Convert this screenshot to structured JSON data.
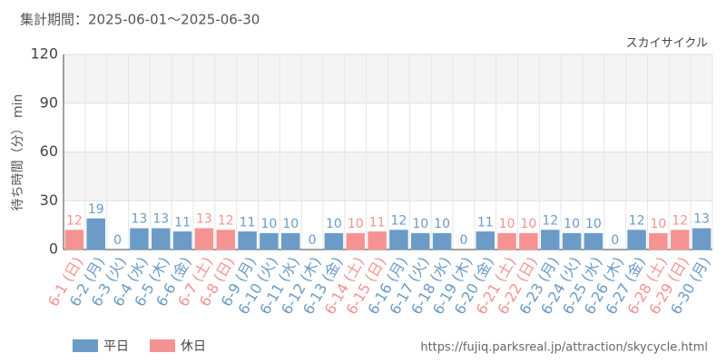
{
  "chart_data": {
    "type": "bar",
    "title": "集計期間：2025-06-01～2025-06-30",
    "subtitle": "スカイサイクル",
    "y_label": "待ち時間（分） min",
    "source": "https://fujiq.parksreal.jp/attraction/skycycle.html",
    "categories": [
      "6-1 (日)",
      "6-2 (月)",
      "6-3 (火)",
      "6-4 (水)",
      "6-5 (木)",
      "6-6 (金)",
      "6-7 (土)",
      "6-8 (日)",
      "6-9 (月)",
      "6-10 (火)",
      "6-11 (水)",
      "6-12 (木)",
      "6-13 (金)",
      "6-14 (土)",
      "6-15 (日)",
      "6-16 (月)",
      "6-17 (火)",
      "6-18 (水)",
      "6-19 (木)",
      "6-20 (金)",
      "6-21 (土)",
      "6-22 (日)",
      "6-23 (月)",
      "6-24 (火)",
      "6-25 (水)",
      "6-26 (木)",
      "6-27 (金)",
      "6-28 (土)",
      "6-29 (日)",
      "6-30 (月)"
    ],
    "series": [
      {
        "name": "平日",
        "color": "#6b9bc6",
        "values": [
          null,
          19,
          0,
          13,
          13,
          11,
          null,
          null,
          11,
          10,
          10,
          0,
          10,
          null,
          null,
          12,
          10,
          10,
          0,
          11,
          null,
          null,
          12,
          10,
          10,
          0,
          12,
          null,
          null,
          13
        ]
      },
      {
        "name": "休日",
        "color": "#f59393",
        "values": [
          12,
          null,
          null,
          null,
          null,
          null,
          13,
          12,
          null,
          null,
          null,
          null,
          null,
          10,
          11,
          null,
          null,
          null,
          null,
          null,
          10,
          10,
          null,
          null,
          null,
          null,
          null,
          10,
          12,
          null
        ]
      }
    ],
    "ylim": [
      0,
      120
    ],
    "yticks": [
      0,
      30,
      60,
      90,
      120
    ],
    "grid": true
  }
}
